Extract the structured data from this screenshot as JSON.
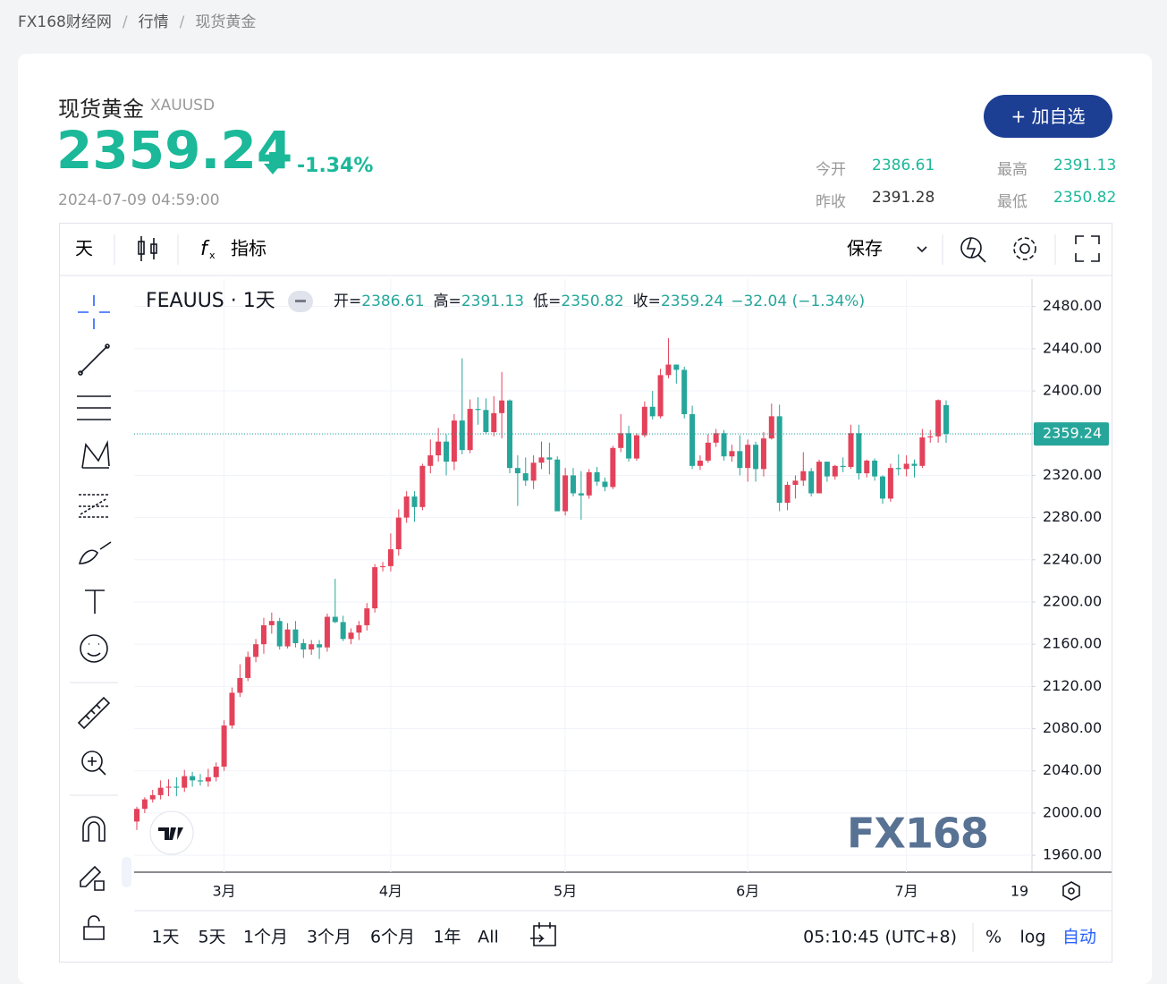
{
  "breadcrumb": [
    "FX168财经网",
    "行情",
    "现货黄金"
  ],
  "header": {
    "name": "现货黄金",
    "symbol": "XAUUSD",
    "price": "2359.24",
    "change": "-1.34%",
    "time": "2024-07-09 04:59:00",
    "button": "+ 加自选",
    "stats": [
      {
        "label": "今开",
        "value": "2386.61"
      },
      {
        "label": "最高",
        "value": "2391.13"
      },
      {
        "label": "昨收",
        "value": "2391.28"
      },
      {
        "label": "最低",
        "value": "2350.82"
      }
    ]
  },
  "toolbar": {
    "interval": "天",
    "indicators": "指标",
    "save": "保存"
  },
  "bottom_bar": {
    "ranges": [
      "1天",
      "5天",
      "1个月",
      "3个月",
      "6个月",
      "1年",
      "All"
    ],
    "clock": "05:10:45 (UTC+8)",
    "percent": "%",
    "log": "log",
    "auto": "自动"
  },
  "chart_data": {
    "type": "candlestick",
    "title": "FEAUUS · 1天",
    "legend": {
      "labels": [
        "开=",
        "高=",
        "低=",
        "收="
      ],
      "change": "−32.04 (−1.34%)"
    },
    "watermark": "FX168",
    "future_tick": "19",
    "categories": [
      null,
      null,
      null,
      null,
      null,
      null,
      null,
      null,
      null,
      null,
      null,
      "3月",
      null,
      null,
      null,
      null,
      null,
      null,
      null,
      null,
      null,
      null,
      null,
      null,
      null,
      null,
      null,
      null,
      null,
      null,
      null,
      null,
      "4月",
      null,
      null,
      null,
      null,
      null,
      null,
      null,
      null,
      null,
      null,
      null,
      null,
      null,
      null,
      null,
      null,
      null,
      null,
      null,
      null,
      null,
      "5月",
      null,
      null,
      null,
      null,
      null,
      null,
      null,
      null,
      null,
      null,
      null,
      null,
      null,
      null,
      null,
      null,
      null,
      null,
      null,
      null,
      null,
      null,
      "6月",
      null,
      null,
      null,
      null,
      null,
      null,
      null,
      null,
      null,
      null,
      null,
      null,
      null,
      null,
      null,
      null,
      null,
      null,
      null,
      "7月",
      null,
      null,
      null,
      null,
      null
    ],
    "open": [
      1992,
      2004,
      2013,
      2017,
      2024,
      2025,
      2024,
      2035,
      2031,
      2030,
      2034,
      2044,
      2083,
      2114,
      2128,
      2148,
      2160,
      2178,
      2182,
      2158,
      2174,
      2161,
      2155,
      2160,
      2157,
      2186,
      2181,
      2165,
      2171,
      2178,
      2194,
      2233,
      2234,
      2250,
      2280,
      2300,
      2290,
      2329,
      2339,
      2352,
      2333,
      2372,
      2344,
      2383,
      2382,
      2361,
      2379,
      2391,
      2327,
      2322,
      2315,
      2332,
      2337,
      2335,
      2286,
      2320,
      2303,
      2301,
      2323,
      2314,
      2309,
      2346,
      2360,
      2336,
      2358,
      2385,
      2376,
      2415,
      2425,
      2420,
      2378,
      2329,
      2334,
      2351,
      2360,
      2338,
      2343,
      2327,
      2349,
      2326,
      2355,
      2376,
      2294,
      2311,
      2315,
      2324,
      2303,
      2333,
      2319,
      2329,
      2328,
      2360,
      2322,
      2334,
      2319,
      2298,
      2327,
      2326,
      2331,
      2329,
      2356,
      2357,
      2386.61
    ],
    "high": [
      2006,
      2015,
      2022,
      2031,
      2032,
      2034,
      2041,
      2039,
      2037,
      2042,
      2048,
      2088,
      2119,
      2141,
      2153,
      2165,
      2185,
      2190,
      2185,
      2180,
      2182,
      2165,
      2164,
      2164,
      2189,
      2222,
      2187,
      2175,
      2182,
      2199,
      2236,
      2238,
      2265,
      2288,
      2305,
      2305,
      2331,
      2354,
      2365,
      2359,
      2378,
      2431,
      2392,
      2394,
      2393,
      2395,
      2418,
      2392,
      2339,
      2337,
      2339,
      2352,
      2351,
      2338,
      2327,
      2327,
      2324,
      2326,
      2328,
      2318,
      2348,
      2378,
      2367,
      2360,
      2390,
      2400,
      2421,
      2450,
      2425,
      2423,
      2386,
      2339,
      2359,
      2364,
      2363,
      2349,
      2358,
      2354,
      2352,
      2361,
      2388,
      2387,
      2314,
      2320,
      2342,
      2327,
      2335,
      2333,
      2330,
      2337,
      2368,
      2368,
      2335,
      2336,
      2320,
      2331,
      2340,
      2339,
      2335,
      2364,
      2363,
      2392,
      2391.13
    ],
    "low": [
      1984,
      2000,
      2010,
      2013,
      2016,
      2016,
      2020,
      2025,
      2026,
      2025,
      2030,
      2040,
      2080,
      2110,
      2125,
      2143,
      2151,
      2170,
      2155,
      2156,
      2157,
      2147,
      2150,
      2146,
      2153,
      2180,
      2163,
      2160,
      2164,
      2173,
      2190,
      2229,
      2229,
      2244,
      2275,
      2276,
      2287,
      2322,
      2333,
      2320,
      2325,
      2340,
      2341,
      2368,
      2359,
      2357,
      2355,
      2322,
      2291,
      2310,
      2307,
      2326,
      2321,
      2286,
      2282,
      2300,
      2278,
      2298,
      2310,
      2305,
      2307,
      2342,
      2333,
      2334,
      2356,
      2373,
      2374,
      2412,
      2407,
      2374,
      2326,
      2325,
      2332,
      2347,
      2334,
      2333,
      2320,
      2314,
      2314,
      2319,
      2354,
      2286,
      2287,
      2298,
      2310,
      2300,
      2303,
      2314,
      2316,
      2323,
      2326,
      2316,
      2318,
      2315,
      2293,
      2295,
      2320,
      2319,
      2318,
      2327,
      2351,
      2351,
      2350.82
    ],
    "close": [
      2004,
      2013,
      2017,
      2024,
      2025,
      2024,
      2035,
      2031,
      2030,
      2034,
      2044,
      2083,
      2114,
      2128,
      2148,
      2160,
      2178,
      2182,
      2158,
      2174,
      2161,
      2155,
      2160,
      2157,
      2186,
      2181,
      2165,
      2171,
      2178,
      2194,
      2233,
      2234,
      2250,
      2280,
      2300,
      2290,
      2329,
      2339,
      2352,
      2333,
      2372,
      2344,
      2383,
      2382,
      2361,
      2379,
      2391,
      2327,
      2322,
      2315,
      2332,
      2337,
      2335,
      2286,
      2320,
      2303,
      2301,
      2323,
      2314,
      2309,
      2346,
      2360,
      2336,
      2358,
      2385,
      2376,
      2415,
      2425,
      2420,
      2378,
      2329,
      2334,
      2351,
      2360,
      2338,
      2343,
      2327,
      2349,
      2326,
      2355,
      2376,
      2294,
      2311,
      2315,
      2324,
      2303,
      2333,
      2319,
      2329,
      2328,
      2360,
      2322,
      2334,
      2319,
      2298,
      2327,
      2326,
      2331,
      2329,
      2356,
      2357,
      2391.28,
      2359.24
    ],
    "up_color": "#e3425a",
    "down_color": "#26a69a",
    "grid": true,
    "ylim": [
      1944,
      2506
    ],
    "yticks": [
      {
        "value": 1960,
        "label": "1960.00"
      },
      {
        "value": 2000,
        "label": "2000.00"
      },
      {
        "value": 2040,
        "label": "2040.00"
      },
      {
        "value": 2080,
        "label": "2080.00"
      },
      {
        "value": 2120,
        "label": "2120.00"
      },
      {
        "value": 2160,
        "label": "2160.00"
      },
      {
        "value": 2200,
        "label": "2200.00"
      },
      {
        "value": 2240,
        "label": "2240.00"
      },
      {
        "value": 2280,
        "label": "2280.00"
      },
      {
        "value": 2320,
        "label": "2320.00"
      },
      {
        "value": 2360,
        "label": "2360.00"
      },
      {
        "value": 2400,
        "label": "2400.00"
      },
      {
        "value": 2440,
        "label": "2440.00"
      },
      {
        "value": 2480,
        "label": "2480.00"
      }
    ]
  }
}
